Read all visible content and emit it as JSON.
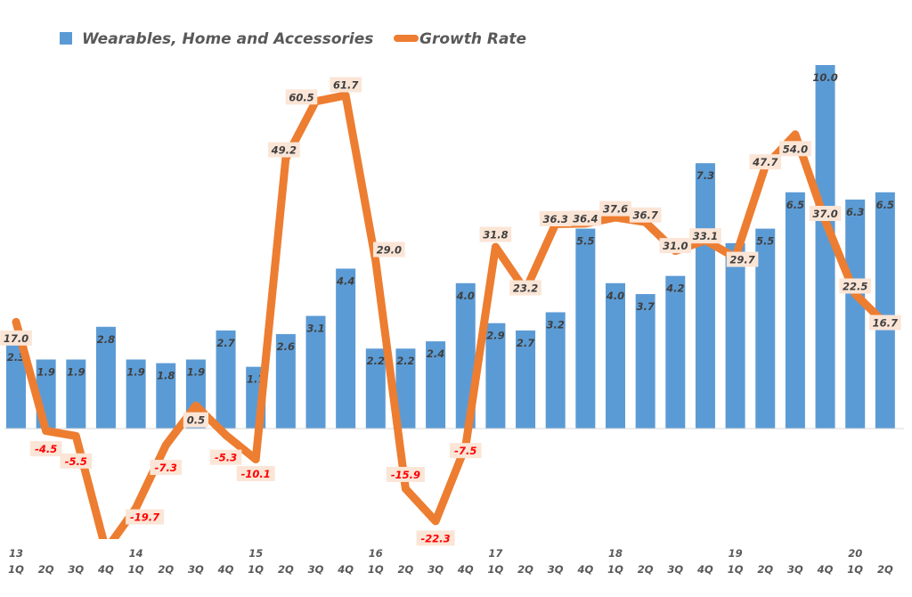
{
  "chart_data": {
    "type": "bar+line",
    "title": "",
    "xlabel": "",
    "ylabel": "",
    "legend": {
      "placement": "top",
      "entries": [
        {
          "name": "Wearables, Home and Accessories",
          "type": "bar",
          "color": "#5b9bd5"
        },
        {
          "name": "Growth Rate",
          "type": "line",
          "color": "#ed7d31"
        }
      ]
    },
    "categories": [
      "1Q",
      "2Q",
      "3Q",
      "4Q",
      "1Q",
      "2Q",
      "3Q",
      "4Q",
      "1Q",
      "2Q",
      "3Q",
      "4Q",
      "1Q",
      "2Q",
      "3Q",
      "4Q",
      "1Q",
      "2Q",
      "3Q",
      "4Q",
      "1Q",
      "2Q",
      "3Q",
      "4Q",
      "1Q",
      "2Q",
      "3Q",
      "4Q",
      "1Q",
      "2Q"
    ],
    "year_labels": [
      {
        "index": 0,
        "label": "13"
      },
      {
        "index": 4,
        "label": "14"
      },
      {
        "index": 8,
        "label": "15"
      },
      {
        "index": 12,
        "label": "16"
      },
      {
        "index": 16,
        "label": "17"
      },
      {
        "index": 20,
        "label": "18"
      },
      {
        "index": 24,
        "label": "19"
      },
      {
        "index": 28,
        "label": "20"
      }
    ],
    "series": [
      {
        "name": "Wearables, Home and Accessories",
        "type": "bar",
        "axis": "primary",
        "values": [
          2.3,
          1.9,
          1.9,
          2.8,
          1.9,
          1.8,
          1.9,
          2.7,
          1.7,
          2.6,
          3.1,
          4.4,
          2.2,
          2.2,
          2.4,
          4.0,
          2.9,
          2.7,
          3.2,
          5.5,
          4.0,
          3.7,
          4.2,
          7.3,
          5.1,
          5.5,
          6.5,
          10.0,
          6.3,
          6.5
        ],
        "labels": [
          "2.3",
          "1.9",
          "1.9",
          "2.8",
          "1.9",
          "1.8",
          "1.9",
          "2.7",
          "1.7",
          "2.6",
          "3.1",
          "4.4",
          "2.2",
          "2.2",
          "2.4",
          "4.0",
          "2.9",
          "2.7",
          "3.2",
          "5.5",
          "4.0",
          "3.7",
          "4.2",
          "7.3",
          "5.1",
          "5.5",
          "6.5",
          "10.0",
          "6.3",
          "6.5"
        ]
      },
      {
        "name": "Growth Rate",
        "type": "line",
        "axis": "secondary",
        "values": [
          17.0,
          -4.5,
          -5.5,
          -28.0,
          -19.7,
          -7.3,
          0.5,
          -5.3,
          -10.1,
          49.2,
          60.5,
          61.7,
          29.0,
          -15.9,
          -22.3,
          -7.5,
          31.8,
          23.2,
          36.3,
          36.4,
          37.6,
          36.7,
          31.0,
          33.1,
          29.7,
          47.7,
          54.0,
          37.0,
          22.5,
          16.7
        ],
        "labels": [
          "17.0",
          "-4.5",
          "-5.5",
          "",
          "-19.7",
          "-7.3",
          "0.5",
          "-5.3",
          "-10.1",
          "49.2",
          "60.5",
          "61.7",
          "29.0",
          "-15.9",
          "-22.3",
          "-7.5",
          "31.8",
          "23.2",
          "36.3",
          "36.4",
          "37.6",
          "36.7",
          "31.0",
          "33.1",
          "29.7",
          "47.7",
          "54.0",
          "37.0",
          "22.5",
          "16.7"
        ]
      }
    ],
    "primary_ylim": [
      0,
      10.0
    ],
    "secondary_ylim": [
      -22.3,
      61.7
    ],
    "grid": false,
    "colors": {
      "bar": "#5b9bd5",
      "line": "#ed7d31",
      "label_box": "#fbe5d6",
      "negative_label": "#ff0000",
      "positive_label": "#404040",
      "axis_text": "#595959",
      "baseline": "#d9d9d9"
    }
  }
}
